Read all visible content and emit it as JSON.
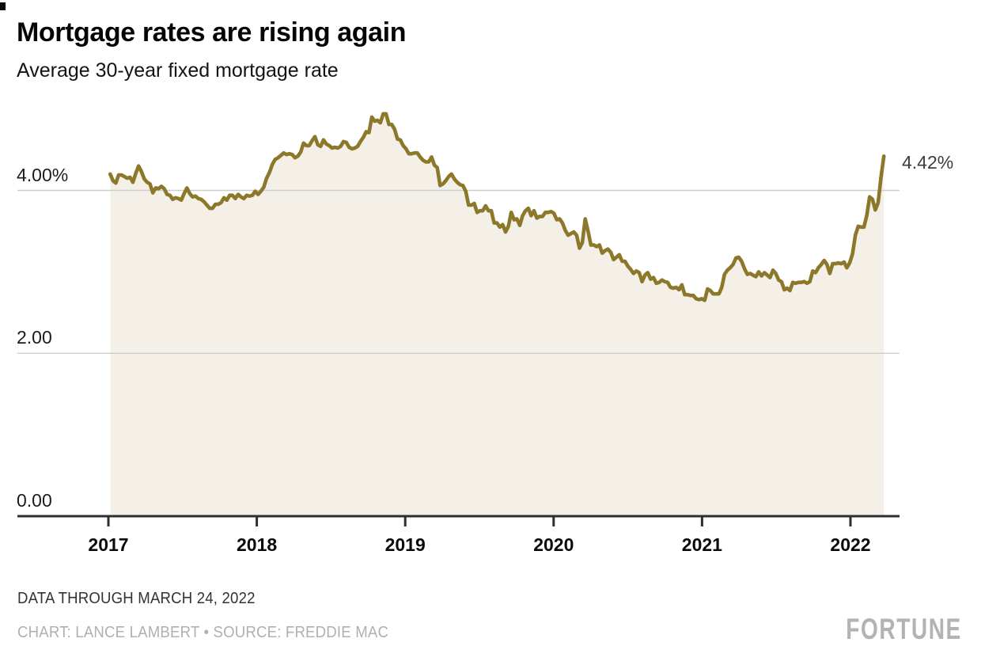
{
  "header": {
    "title": "Mortgage rates are rising again",
    "subtitle": "Average 30-year fixed mortgage rate"
  },
  "annotation": {
    "end_label": "4.42%"
  },
  "footer": {
    "note": "DATA THROUGH MARCH 24, 2022",
    "credit": "CHART: LANCE LAMBERT • SOURCE: FREDDIE MAC",
    "brand": "FORTUNE"
  },
  "colors": {
    "line": "#8c782b",
    "fill": "#f4f0e8",
    "grid": "#cdcdcd",
    "axis": "#2f2f2f"
  },
  "chart_data": {
    "type": "area",
    "title": "Mortgage rates are rising again",
    "subtitle": "Average 30-year fixed mortgage rate",
    "xlabel": "",
    "ylabel": "Average 30-year fixed mortgage rate (%)",
    "x_start": 2017.012,
    "x_step": 0.019165,
    "xticks": [
      2017,
      2018,
      2019,
      2020,
      2021,
      2022
    ],
    "ytick_values": [
      4,
      2,
      0
    ],
    "ytick_labels": [
      "4.00%",
      "2.00",
      "0.00"
    ],
    "grid_values": [
      4,
      2
    ],
    "ylim": [
      0,
      5.15
    ],
    "xlim": [
      2016.39,
      2022.35
    ],
    "grid": true,
    "legend_position": "none",
    "end_value": 4.42,
    "end_label": "4.42%",
    "series": [
      {
        "name": "Average 30-year fixed mortgage rate",
        "values": [
          4.2,
          4.12,
          4.09,
          4.19,
          4.19,
          4.17,
          4.15,
          4.16,
          4.1,
          4.21,
          4.3,
          4.23,
          4.14,
          4.1,
          4.08,
          3.97,
          4.03,
          4.02,
          4.05,
          4.02,
          3.95,
          3.94,
          3.89,
          3.91,
          3.9,
          3.88,
          3.96,
          4.03,
          3.96,
          3.92,
          3.93,
          3.9,
          3.89,
          3.86,
          3.82,
          3.78,
          3.78,
          3.83,
          3.83,
          3.85,
          3.91,
          3.88,
          3.94,
          3.94,
          3.9,
          3.95,
          3.92,
          3.9,
          3.94,
          3.93,
          3.94,
          3.99,
          3.95,
          3.99,
          4.04,
          4.15,
          4.22,
          4.32,
          4.38,
          4.4,
          4.43,
          4.46,
          4.44,
          4.45,
          4.44,
          4.4,
          4.42,
          4.47,
          4.58,
          4.55,
          4.55,
          4.61,
          4.66,
          4.56,
          4.54,
          4.62,
          4.57,
          4.55,
          4.52,
          4.53,
          4.52,
          4.54,
          4.6,
          4.59,
          4.53,
          4.51,
          4.52,
          4.54,
          4.6,
          4.65,
          4.72,
          4.71,
          4.9,
          4.85,
          4.86,
          4.83,
          4.94,
          4.94,
          4.81,
          4.81,
          4.75,
          4.63,
          4.62,
          4.55,
          4.51,
          4.45,
          4.45,
          4.46,
          4.46,
          4.41,
          4.37,
          4.35,
          4.35,
          4.41,
          4.31,
          4.28,
          4.06,
          4.08,
          4.12,
          4.17,
          4.2,
          4.14,
          4.1,
          4.07,
          4.06,
          3.99,
          3.82,
          3.82,
          3.84,
          3.73,
          3.75,
          3.75,
          3.81,
          3.75,
          3.75,
          3.6,
          3.6,
          3.55,
          3.58,
          3.49,
          3.56,
          3.73,
          3.64,
          3.65,
          3.57,
          3.69,
          3.75,
          3.78,
          3.69,
          3.75,
          3.66,
          3.68,
          3.68,
          3.73,
          3.73,
          3.74,
          3.72,
          3.64,
          3.65,
          3.6,
          3.51,
          3.45,
          3.47,
          3.49,
          3.45,
          3.29,
          3.36,
          3.65,
          3.5,
          3.33,
          3.33,
          3.31,
          3.33,
          3.23,
          3.26,
          3.28,
          3.24,
          3.15,
          3.18,
          3.21,
          3.13,
          3.13,
          3.07,
          3.03,
          2.98,
          3.01,
          2.99,
          2.88,
          2.96,
          2.99,
          2.91,
          2.93,
          2.86,
          2.87,
          2.9,
          2.88,
          2.87,
          2.81,
          2.8,
          2.81,
          2.78,
          2.84,
          2.72,
          2.72,
          2.71,
          2.71,
          2.67,
          2.66,
          2.67,
          2.65,
          2.79,
          2.77,
          2.73,
          2.73,
          2.73,
          2.81,
          2.97,
          3.02,
          3.05,
          3.09,
          3.17,
          3.18,
          3.13,
          3.04,
          2.97,
          2.98,
          2.96,
          2.94,
          3.0,
          2.95,
          2.99,
          2.96,
          2.93,
          3.02,
          2.98,
          2.9,
          2.88,
          2.78,
          2.8,
          2.77,
          2.87,
          2.86,
          2.87,
          2.87,
          2.88,
          2.86,
          2.88,
          3.01,
          2.99,
          3.05,
          3.09,
          3.14,
          3.09,
          2.98,
          3.1,
          3.1,
          3.11,
          3.1,
          3.12,
          3.05,
          3.11,
          3.22,
          3.45,
          3.56,
          3.55,
          3.55,
          3.69,
          3.92,
          3.89,
          3.76,
          3.85,
          4.16,
          4.42
        ]
      }
    ]
  }
}
